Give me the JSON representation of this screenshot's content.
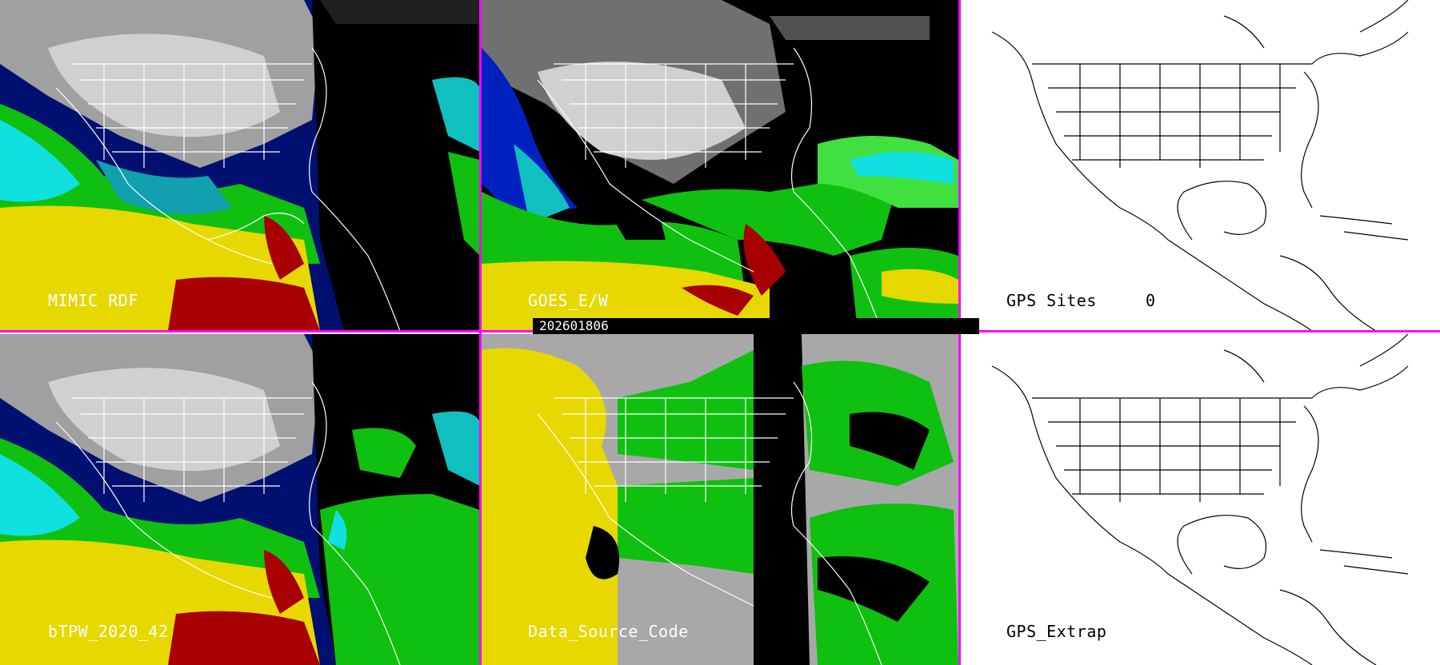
{
  "panels": {
    "mimic_rdf": {
      "label": "MIMIC RDF"
    },
    "goes_ew": {
      "label": "GOES_E/W"
    },
    "gps_sites": {
      "label": "GPS Sites",
      "value": "0"
    },
    "btpw": {
      "label": "bTPW_2020_42"
    },
    "data_source_code": {
      "label": "Data_Source_Code"
    },
    "gps_extrap": {
      "label": "GPS_Extrap"
    }
  },
  "timestamp": "202601806",
  "colors": {
    "separator": "#ff00ff",
    "deep_red": "#a80000",
    "red": "#e00000",
    "yellow": "#e6d800",
    "green": "#10c010",
    "light_green": "#40e040",
    "cyan": "#10e0e0",
    "teal": "#10a0b0",
    "blue": "#0020c0",
    "navy": "#001070",
    "gray": "#a8a8a8",
    "land_gray": "#b0b0b0",
    "black": "#000000",
    "white": "#ffffff"
  },
  "icons": [
    "map-outline-icon"
  ]
}
